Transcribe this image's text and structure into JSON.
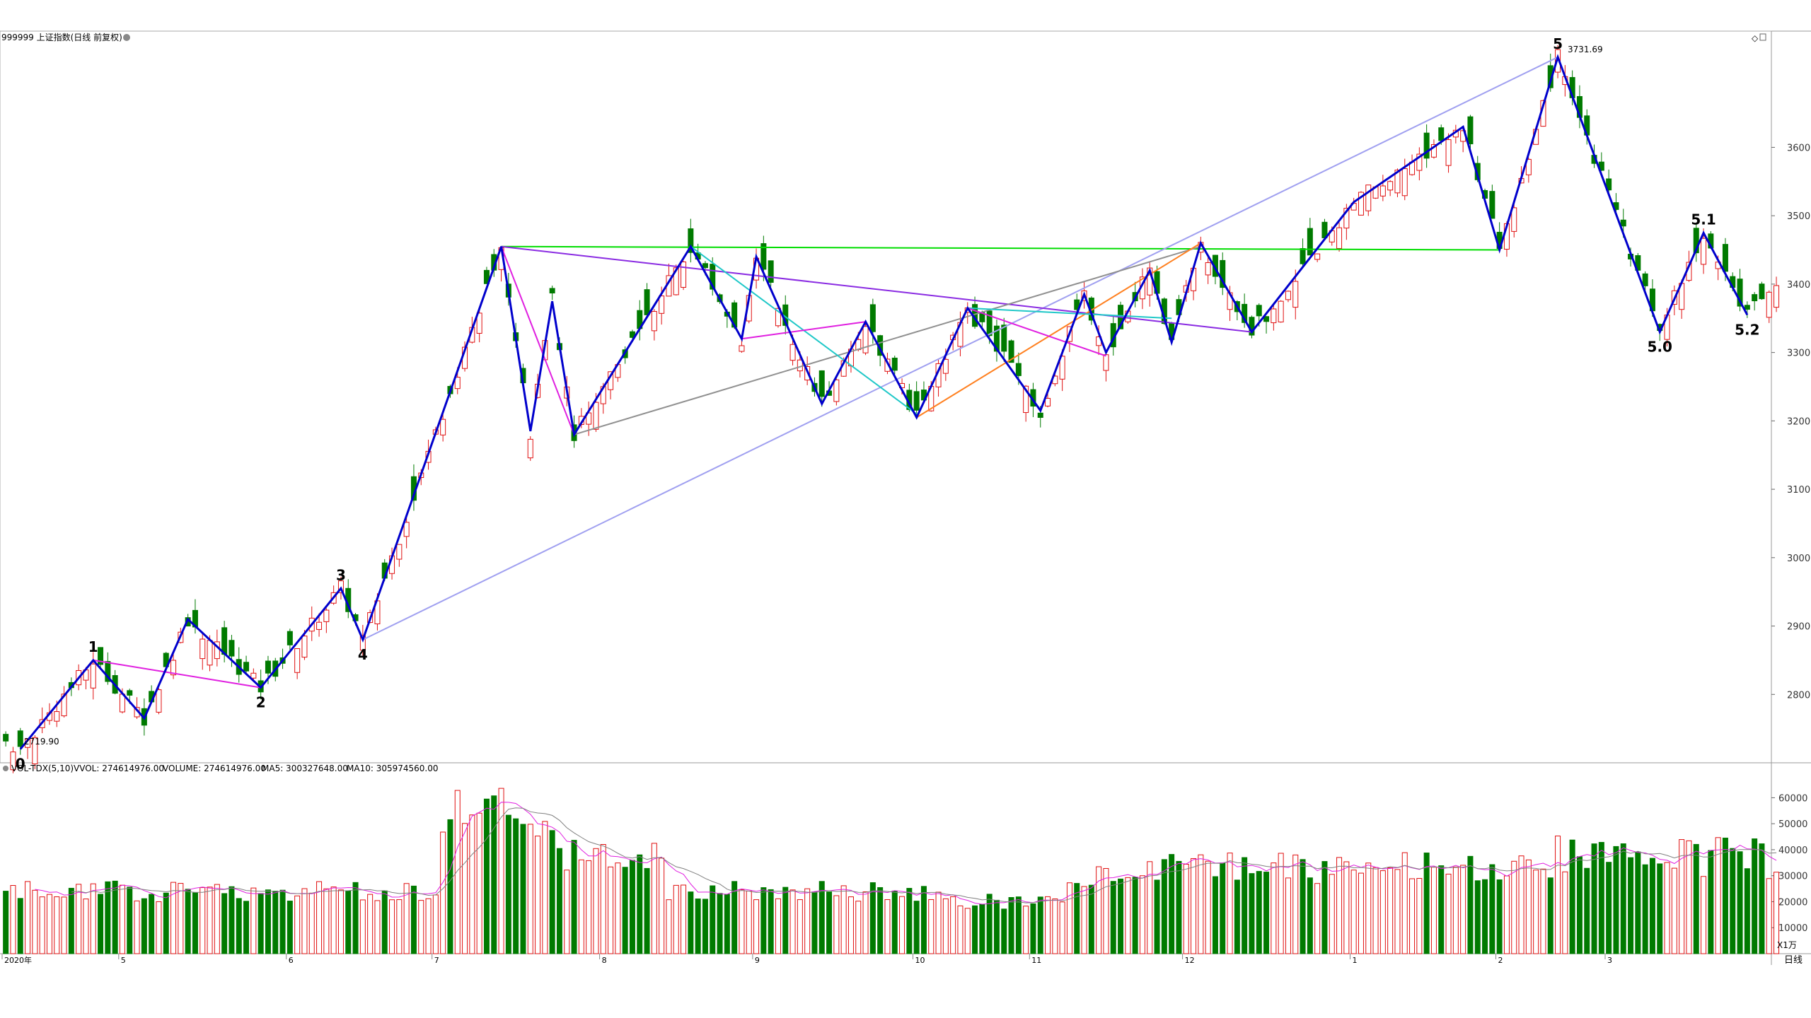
{
  "header": {
    "title": "999999 上证指数(日线 前复权)",
    "corner_symbol": "◇"
  },
  "volume_header": {
    "indicator": "VOL-TDX(5,10)",
    "vvol": "VVOL: 274614976.00",
    "volume": "VOLUME: 274614976.00",
    "ma5": "MA5: 300327648.00",
    "ma10": "MA10: 305974560.00"
  },
  "volume_unit": "X1万",
  "period_label": "日线",
  "colors": {
    "up": "#e01010",
    "down": "#007a00",
    "wave": "#0000cc",
    "magenta": "#e020e0",
    "purple": "#8a2be2",
    "green_line": "#00dd00",
    "lavender": "#a0a0f0",
    "gray": "#909090",
    "orange": "#ff8020",
    "cyan": "#20c8c8",
    "ma5": "#e020e0",
    "ma10": "#808080"
  },
  "chart_data": {
    "type": "candlestick",
    "price_axis": {
      "ylim": [
        2700,
        3770
      ],
      "ticks": [
        2800,
        2900,
        3000,
        3100,
        3200,
        3300,
        3400,
        3500,
        3600
      ]
    },
    "volume_axis": {
      "ylim": [
        0,
        68000
      ],
      "ticks": [
        10000,
        20000,
        30000,
        40000,
        50000,
        60000
      ]
    },
    "month_labels": [
      {
        "label": "2020年",
        "index": 0
      },
      {
        "label": "5",
        "index": 16
      },
      {
        "label": "6",
        "index": 39
      },
      {
        "label": "7",
        "index": 59
      },
      {
        "label": "8",
        "index": 82
      },
      {
        "label": "9",
        "index": 103
      },
      {
        "label": "10",
        "index": 125
      },
      {
        "label": "11",
        "index": 141
      },
      {
        "label": "12",
        "index": 162
      },
      {
        "label": "1",
        "index": 185
      },
      {
        "label": "2",
        "index": 205
      },
      {
        "label": "3",
        "index": 220
      }
    ],
    "annotations": {
      "low_value": "2719.90",
      "high_value": "3731.69"
    },
    "wave_labels": [
      {
        "label": "0",
        "index": 2,
        "price": 2720,
        "pos": "below"
      },
      {
        "label": "1",
        "index": 12,
        "price": 2850,
        "pos": "above"
      },
      {
        "label": "2",
        "index": 35,
        "price": 2810,
        "pos": "below"
      },
      {
        "label": "3",
        "index": 46,
        "price": 2955,
        "pos": "above"
      },
      {
        "label": "4",
        "index": 49,
        "price": 2880,
        "pos": "below"
      },
      {
        "label": "5",
        "index": 213,
        "price": 3732,
        "pos": "above"
      },
      {
        "label": "5.0",
        "index": 227,
        "price": 3330,
        "pos": "below"
      },
      {
        "label": "5.1",
        "index": 233,
        "price": 3475,
        "pos": "above"
      },
      {
        "label": "5.2",
        "index": 239,
        "price": 3355,
        "pos": "below"
      }
    ],
    "wave_path": [
      [
        2,
        2720
      ],
      [
        12,
        2850
      ],
      [
        19,
        2765
      ],
      [
        25,
        2910
      ],
      [
        35,
        2810
      ],
      [
        46,
        2955
      ],
      [
        49,
        2880
      ],
      [
        68,
        3455
      ],
      [
        72,
        3185
      ],
      [
        75,
        3375
      ],
      [
        78,
        3180
      ],
      [
        94,
        3455
      ],
      [
        101,
        3320
      ],
      [
        103,
        3440
      ],
      [
        112,
        3225
      ],
      [
        118,
        3345
      ],
      [
        125,
        3205
      ],
      [
        132,
        3365
      ],
      [
        142,
        3215
      ],
      [
        148,
        3385
      ],
      [
        151,
        3300
      ],
      [
        157,
        3420
      ],
      [
        160,
        3315
      ],
      [
        164,
        3460
      ],
      [
        171,
        3330
      ],
      [
        185,
        3520
      ],
      [
        200,
        3630
      ],
      [
        205,
        3450
      ],
      [
        213,
        3732
      ],
      [
        227,
        3330
      ],
      [
        233,
        3475
      ],
      [
        239,
        3355
      ]
    ],
    "trend_lines": [
      {
        "color": "green_line",
        "points": [
          [
            68,
            3455
          ],
          [
            205,
            3450
          ]
        ]
      },
      {
        "color": "lavender",
        "points": [
          [
            49,
            2880
          ],
          [
            213,
            3732
          ]
        ]
      },
      {
        "color": "purple",
        "points": [
          [
            68,
            3455
          ],
          [
            171,
            3330
          ]
        ]
      },
      {
        "color": "gray",
        "points": [
          [
            78,
            3180
          ],
          [
            164,
            3455
          ]
        ]
      },
      {
        "color": "orange",
        "points": [
          [
            125,
            3205
          ],
          [
            164,
            3460
          ]
        ]
      },
      {
        "color": "cyan",
        "points": [
          [
            94,
            3455
          ],
          [
            125,
            3210
          ]
        ]
      },
      {
        "color": "cyan",
        "points": [
          [
            132,
            3365
          ],
          [
            160,
            3350
          ]
        ]
      },
      {
        "color": "magenta",
        "points": [
          [
            12,
            2850
          ],
          [
            35,
            2810
          ]
        ]
      },
      {
        "color": "magenta",
        "points": [
          [
            68,
            3455
          ],
          [
            78,
            3180
          ]
        ]
      },
      {
        "color": "magenta",
        "points": [
          [
            101,
            3320
          ],
          [
            118,
            3345
          ]
        ]
      },
      {
        "color": "magenta",
        "points": [
          [
            132,
            3365
          ],
          [
            151,
            3295
          ]
        ]
      }
    ]
  }
}
